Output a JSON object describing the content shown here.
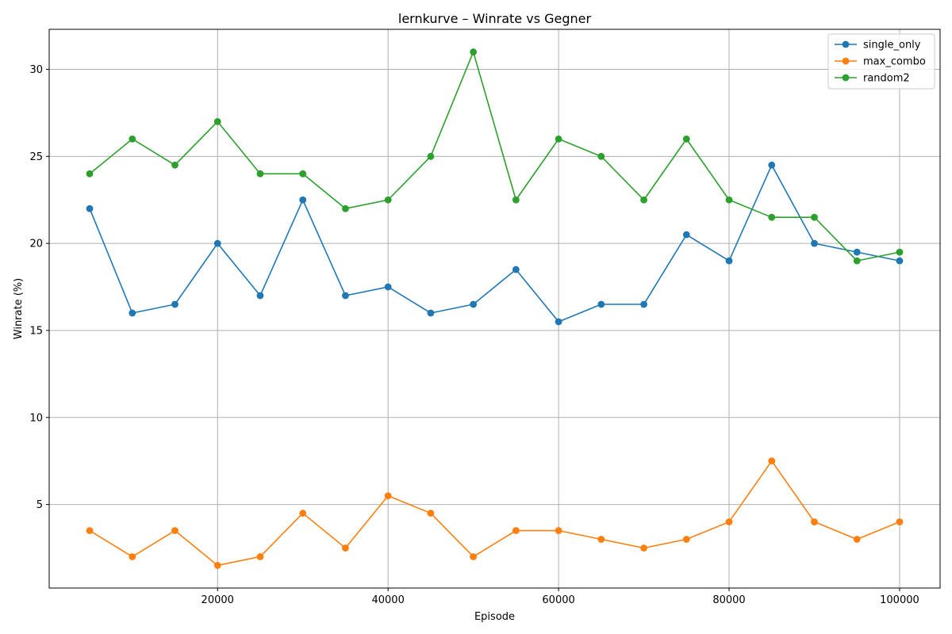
{
  "chart_data": {
    "type": "line",
    "title": "lernkurve – Winrate vs Gegner",
    "xlabel": "Episode",
    "ylabel": "Winrate (%)",
    "xlim": [
      250,
      104750
    ],
    "ylim": [
      0.2,
      32.3
    ],
    "xticks": [
      20000,
      40000,
      60000,
      80000,
      100000
    ],
    "yticks": [
      5,
      10,
      15,
      20,
      25,
      30
    ],
    "grid": true,
    "legend_position": "top-right",
    "x": [
      5000,
      10000,
      15000,
      20000,
      25000,
      30000,
      35000,
      40000,
      45000,
      50000,
      55000,
      60000,
      65000,
      70000,
      75000,
      80000,
      85000,
      90000,
      95000,
      100000
    ],
    "series": [
      {
        "name": "single_only",
        "color": "#1f77b4",
        "values": [
          22,
          16,
          16.5,
          20,
          17,
          22.5,
          17,
          17.5,
          16,
          16.5,
          18.5,
          15.5,
          16.5,
          16.5,
          20.5,
          19,
          24.5,
          20,
          19.5,
          19
        ]
      },
      {
        "name": "max_combo",
        "color": "#ff7f0e",
        "values": [
          3.5,
          2,
          3.5,
          1.5,
          2,
          4.5,
          2.5,
          5.5,
          4.5,
          2,
          3.5,
          3.5,
          3,
          2.5,
          3,
          4,
          7.5,
          4,
          3,
          4
        ]
      },
      {
        "name": "random2",
        "color": "#2ca02c",
        "values": [
          24,
          26,
          24.5,
          27,
          24,
          24,
          22,
          22.5,
          25,
          31,
          22.5,
          26,
          25,
          22.5,
          26,
          22.5,
          21.5,
          21.5,
          19,
          19.5
        ]
      }
    ]
  }
}
